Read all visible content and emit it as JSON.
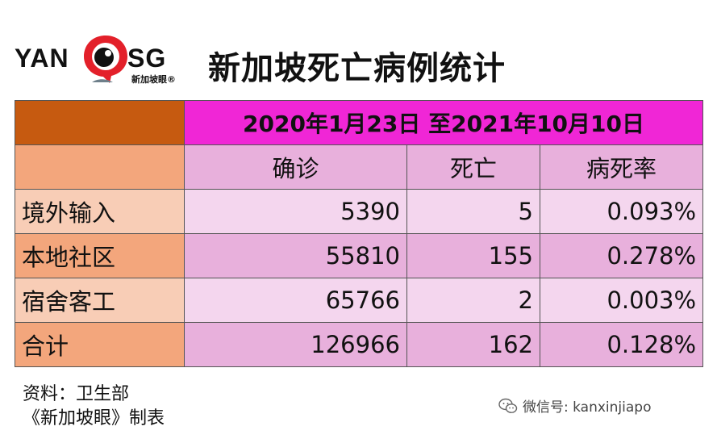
{
  "logo": {
    "left_text": "YAN",
    "right_text": "SG",
    "sub_text": "新加坡眼®",
    "mark_color": "#e3202a"
  },
  "title": "新加坡死亡病例统计",
  "table": {
    "date_range": "2020年1月23日 至2021年10月10日",
    "headers": [
      "",
      "确诊",
      "死亡",
      "病死率"
    ],
    "rows": [
      {
        "label": "境外输入",
        "confirmed": "5390",
        "deaths": "5",
        "rate": "0.093%"
      },
      {
        "label": "本地社区",
        "confirmed": "55810",
        "deaths": "155",
        "rate": "0.278%"
      },
      {
        "label": "宿舍客工",
        "confirmed": "65766",
        "deaths": "2",
        "rate": "0.003%"
      },
      {
        "label": "合计",
        "confirmed": "126966",
        "deaths": "162",
        "rate": "0.128%"
      }
    ]
  },
  "source": {
    "line1": "资料：卫生部",
    "line2": "《新加坡眼》制表"
  },
  "wechat": {
    "label": "微信号: kanxinjiapo",
    "icon": "wechat-icon"
  },
  "colors": {
    "band_orange": "#c65a10",
    "band_magenta": "#f026d6",
    "header_pink": "#e8b0dc",
    "light_pink": "#f4d6ee",
    "peach": "#f3a67c",
    "light_peach": "#f8cdb6"
  }
}
